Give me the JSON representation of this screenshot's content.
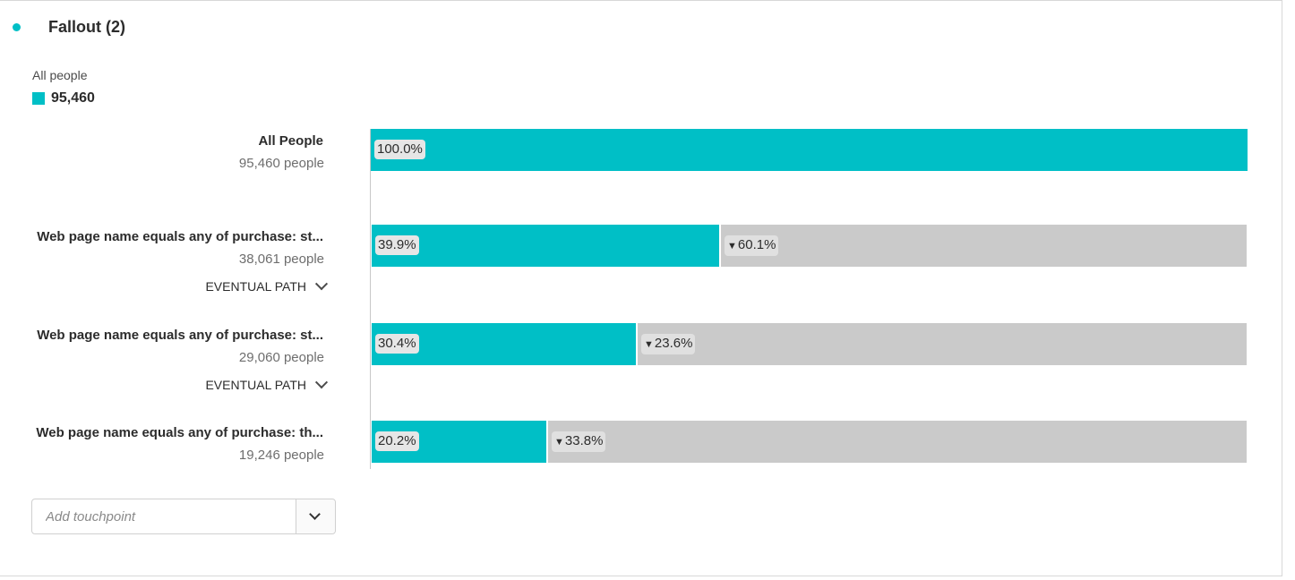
{
  "colors": {
    "accent": "#00bfc6",
    "track": "#cacaca"
  },
  "panel": {
    "title": "Fallout (2)"
  },
  "legend": {
    "label": "All people",
    "value": "95,460"
  },
  "chart_data": {
    "type": "bar",
    "title": "Fallout (2)",
    "series": [
      {
        "name": "All people",
        "values": [
          100.0,
          39.9,
          30.4,
          20.2
        ]
      }
    ],
    "steps": [
      {
        "name": "All People",
        "people": "95,460 people",
        "value": 100.0,
        "pct_label": "100.0%",
        "drop_label": "",
        "eventual_path": ""
      },
      {
        "name": "Web page name equals any of purchase: st...",
        "people": "38,061 people",
        "value": 39.9,
        "pct_label": "39.9%",
        "drop_label": "60.1%",
        "eventual_path": "EVENTUAL PATH"
      },
      {
        "name": "Web page name equals any of purchase: st...",
        "people": "29,060 people",
        "value": 30.4,
        "pct_label": "30.4%",
        "drop_label": "23.6%",
        "eventual_path": "EVENTUAL PATH"
      },
      {
        "name": "Web page name equals any of purchase: th...",
        "people": "19,246 people",
        "value": 20.2,
        "pct_label": "20.2%",
        "drop_label": "33.8%",
        "eventual_path": ""
      }
    ],
    "ylim": [
      0,
      100
    ]
  },
  "add_touchpoint": {
    "placeholder": "Add touchpoint",
    "dropdown_icon": "chevron-down-icon"
  }
}
